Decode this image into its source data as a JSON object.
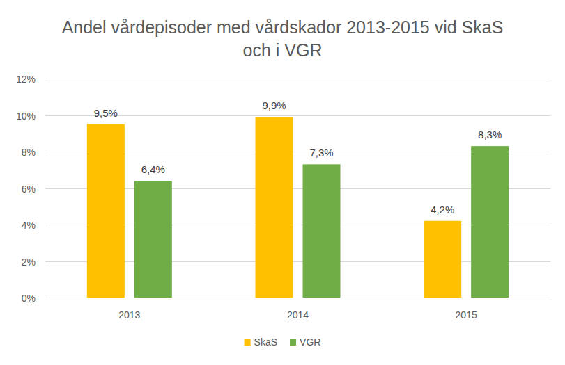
{
  "chart_data": {
    "type": "bar",
    "title": "Andel vårdepisoder med vårdskador 2013-2015 vid SkaS och i VGR",
    "categories": [
      "2013",
      "2014",
      "2015"
    ],
    "series": [
      {
        "name": "SkaS",
        "color": "#ffc000",
        "values": [
          9.5,
          9.9,
          4.2
        ],
        "value_labels": [
          "9,5%",
          "9,9%",
          "4,2%"
        ]
      },
      {
        "name": "VGR",
        "color": "#70ad47",
        "values": [
          6.4,
          7.3,
          8.3
        ],
        "value_labels": [
          "6,4%",
          "7,3%",
          "8,3%"
        ]
      }
    ],
    "ylim": [
      0,
      12
    ],
    "yticks": [
      {
        "value": 0,
        "label": "0%"
      },
      {
        "value": 2,
        "label": "2%"
      },
      {
        "value": 4,
        "label": "4%"
      },
      {
        "value": 6,
        "label": "6%"
      },
      {
        "value": 8,
        "label": "8%"
      },
      {
        "value": 10,
        "label": "10%"
      },
      {
        "value": 12,
        "label": "12%"
      }
    ],
    "grid": true,
    "legend": "bottom",
    "data_labels": true
  }
}
